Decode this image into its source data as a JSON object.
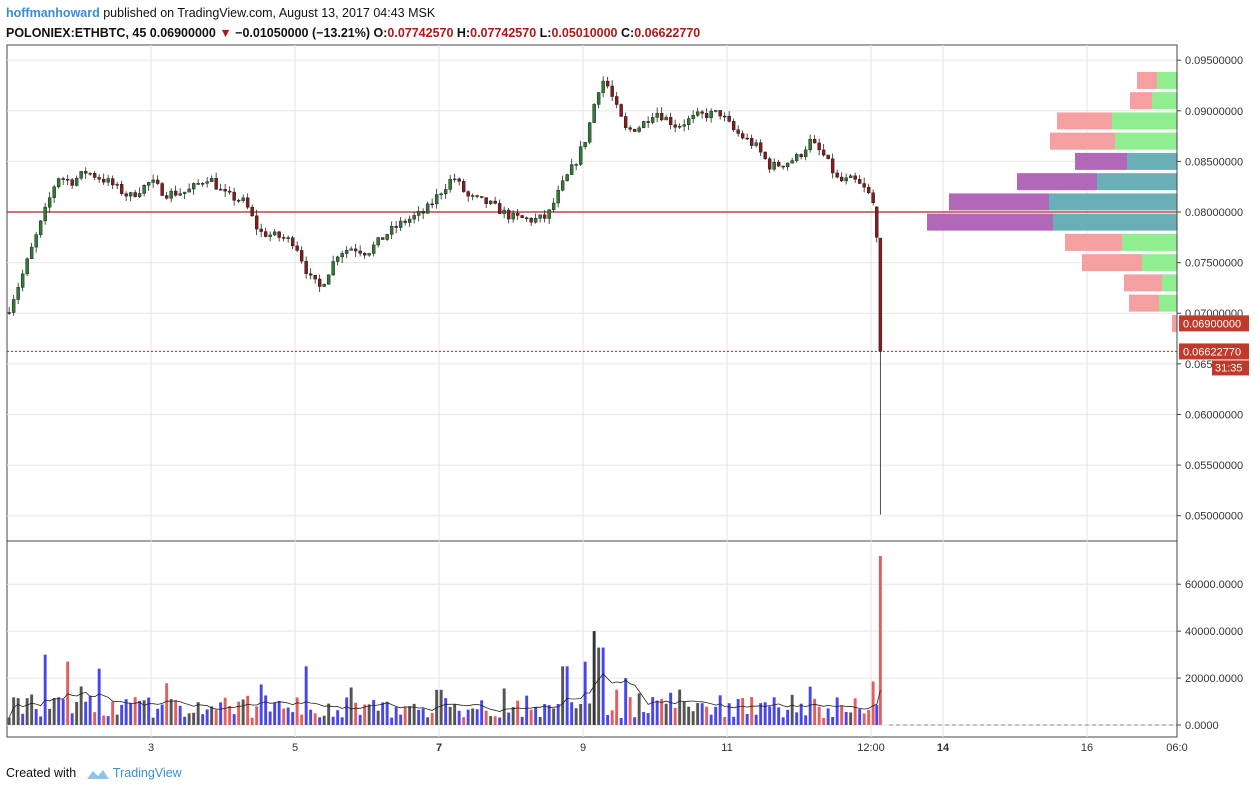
{
  "header": {
    "author": "hoffmanhoward",
    "published": "published on TradingView.com, August 13, 2017 04:43 MSK",
    "symbol": "POLONIEX:ETHBTC, 45",
    "last": "0.06900000",
    "change": "−0.01050000 (−13.21%)",
    "o_label": "O:",
    "o_value": "0.07742570",
    "h_label": "H:",
    "h_value": "0.07742570",
    "l_label": "L:",
    "l_value": "0.05010000",
    "c_label": "C:",
    "c_value": "0.06622770"
  },
  "footer": {
    "created_with": "Created with",
    "brand": "TradingView"
  },
  "colors": {
    "up": "#2e7d32",
    "down": "#8b1a1a",
    "grid": "#e6e6e6",
    "hline": "#b22222",
    "vol_blue": "#4a47e8",
    "vol_red": "#e06060",
    "profile_green": "#90ee90",
    "profile_pink": "#f4a0a0",
    "profile_teal": "#6aafb5",
    "profile_purple": "#b268b8"
  },
  "chart_data": {
    "type": "candlestick",
    "price_axis": {
      "ticks": [
        "0.09500000",
        "0.09000000",
        "0.08500000",
        "0.08000000",
        "0.07500000",
        "0.07000000",
        "0.06500000",
        "0.06000000",
        "0.05500000",
        "0.05000000"
      ],
      "range": [
        0.0475,
        0.0965
      ],
      "last_price_label": "0.06900000",
      "close_label": "0.06622770",
      "countdown": "31:35"
    },
    "volume_axis": {
      "ticks": [
        "60000.0000",
        "40000.0000",
        "20000.0000",
        "0.0000"
      ],
      "range": [
        0,
        75000
      ]
    },
    "x_axis": {
      "labels": [
        {
          "text": "3",
          "day": 3,
          "bold": false
        },
        {
          "text": "5",
          "day": 5,
          "bold": false
        },
        {
          "text": "7",
          "day": 7,
          "bold": true
        },
        {
          "text": "9",
          "day": 9,
          "bold": false
        },
        {
          "text": "11",
          "day": 11,
          "bold": false
        },
        {
          "text": "12:00",
          "day": 13,
          "bold": false
        },
        {
          "text": "14",
          "day": 14,
          "bold": true
        },
        {
          "text": "16",
          "day": 16,
          "bold": false
        },
        {
          "text": "06:0",
          "day": 17.25,
          "bold": false
        }
      ],
      "range_days": [
        1.0,
        17.25
      ]
    },
    "price_path": [
      [
        1.0,
        0.07
      ],
      [
        1.2,
        0.0735
      ],
      [
        1.45,
        0.0785
      ],
      [
        1.7,
        0.0835
      ],
      [
        1.9,
        0.083
      ],
      [
        2.1,
        0.084
      ],
      [
        2.4,
        0.083
      ],
      [
        2.7,
        0.0815
      ],
      [
        3.0,
        0.083
      ],
      [
        3.2,
        0.0818
      ],
      [
        3.5,
        0.082
      ],
      [
        3.8,
        0.0835
      ],
      [
        4.0,
        0.0818
      ],
      [
        4.3,
        0.081
      ],
      [
        4.5,
        0.078
      ],
      [
        4.8,
        0.0775
      ],
      [
        5.0,
        0.077
      ],
      [
        5.2,
        0.0735
      ],
      [
        5.35,
        0.0725
      ],
      [
        5.6,
        0.076
      ],
      [
        5.8,
        0.0765
      ],
      [
        6.0,
        0.076
      ],
      [
        6.3,
        0.078
      ],
      [
        6.5,
        0.079
      ],
      [
        6.8,
        0.08
      ],
      [
        7.0,
        0.0818
      ],
      [
        7.2,
        0.0835
      ],
      [
        7.4,
        0.0815
      ],
      [
        7.7,
        0.0808
      ],
      [
        8.0,
        0.0795
      ],
      [
        8.3,
        0.0792
      ],
      [
        8.5,
        0.0795
      ],
      [
        8.7,
        0.0825
      ],
      [
        8.9,
        0.085
      ],
      [
        9.05,
        0.0875
      ],
      [
        9.2,
        0.092
      ],
      [
        9.3,
        0.0932
      ],
      [
        9.45,
        0.0905
      ],
      [
        9.6,
        0.088
      ],
      [
        9.8,
        0.0885
      ],
      [
        10.0,
        0.09
      ],
      [
        10.3,
        0.0885
      ],
      [
        10.6,
        0.0895
      ],
      [
        10.9,
        0.0898
      ],
      [
        11.1,
        0.088
      ],
      [
        11.4,
        0.0865
      ],
      [
        11.6,
        0.0845
      ],
      [
        11.8,
        0.0848
      ],
      [
        12.0,
        0.0855
      ],
      [
        12.15,
        0.087
      ],
      [
        12.35,
        0.0855
      ],
      [
        12.55,
        0.083
      ],
      [
        12.75,
        0.0832
      ],
      [
        12.95,
        0.082
      ],
      [
        13.05,
        0.0805
      ]
    ],
    "final_candles": [
      {
        "day": 13.08,
        "o": 0.0805,
        "h": 0.0806,
        "l": 0.077,
        "c": 0.0775
      },
      {
        "day": 13.13,
        "o": 0.0774257,
        "h": 0.0774257,
        "l": 0.0501,
        "c": 0.0662277
      }
    ],
    "volume_peaks": [
      {
        "day": 1.55,
        "v": 30000
      },
      {
        "day": 1.85,
        "v": 27000
      },
      {
        "day": 2.3,
        "v": 24000
      },
      {
        "day": 5.15,
        "v": 25000
      },
      {
        "day": 7.0,
        "v": 15000
      },
      {
        "day": 8.75,
        "v": 25000
      },
      {
        "day": 9.05,
        "v": 27000
      },
      {
        "day": 9.15,
        "v": 40000
      },
      {
        "day": 9.25,
        "v": 33000
      },
      {
        "day": 9.6,
        "v": 20000
      },
      {
        "day": 13.12,
        "v": 72000
      },
      {
        "day": 13.17,
        "v": 41000
      }
    ],
    "volume_profile": [
      {
        "price": 0.093,
        "up": 20,
        "down": 20
      },
      {
        "price": 0.091,
        "up": 25,
        "down": 22
      },
      {
        "price": 0.089,
        "up": 65,
        "down": 55
      },
      {
        "price": 0.087,
        "up": 62,
        "down": 65
      },
      {
        "price": 0.085,
        "up": 50,
        "down": 52
      },
      {
        "price": 0.083,
        "up": 80,
        "down": 80
      },
      {
        "price": 0.081,
        "up": 128,
        "down": 100
      },
      {
        "price": 0.079,
        "up": 124,
        "down": 126
      },
      {
        "price": 0.077,
        "up": 55,
        "down": 57
      },
      {
        "price": 0.075,
        "up": 35,
        "down": 60
      },
      {
        "price": 0.073,
        "up": 15,
        "down": 38
      },
      {
        "price": 0.071,
        "up": 18,
        "down": 30
      },
      {
        "price": 0.069,
        "up": 0,
        "down": 5
      }
    ],
    "horizontal_line": 0.08,
    "grid": true
  }
}
